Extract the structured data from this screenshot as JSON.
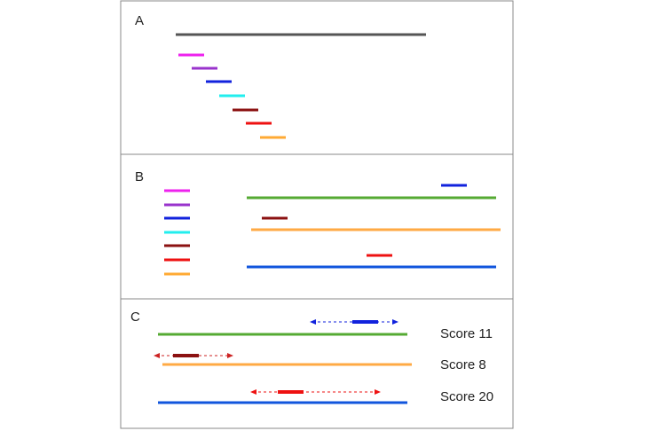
{
  "panels": {
    "a": {
      "label": "A"
    },
    "b": {
      "label": "B"
    },
    "c": {
      "label": "C"
    }
  },
  "colors": {
    "reference": "#555555",
    "magenta": "#ee22ee",
    "purple": "#9933cc",
    "blue": "#1122dd",
    "cyan": "#22eeee",
    "darkred": "#8b1111",
    "red": "#ee1111",
    "orange": "#ffaa33",
    "green": "#55aa33",
    "orange_contig": "#ffaa44",
    "blue_contig": "#1155dd",
    "frame": "#888888"
  },
  "scores": [
    {
      "label": "Score 11"
    },
    {
      "label": "Score 8"
    },
    {
      "label": "Score 20"
    }
  ]
}
